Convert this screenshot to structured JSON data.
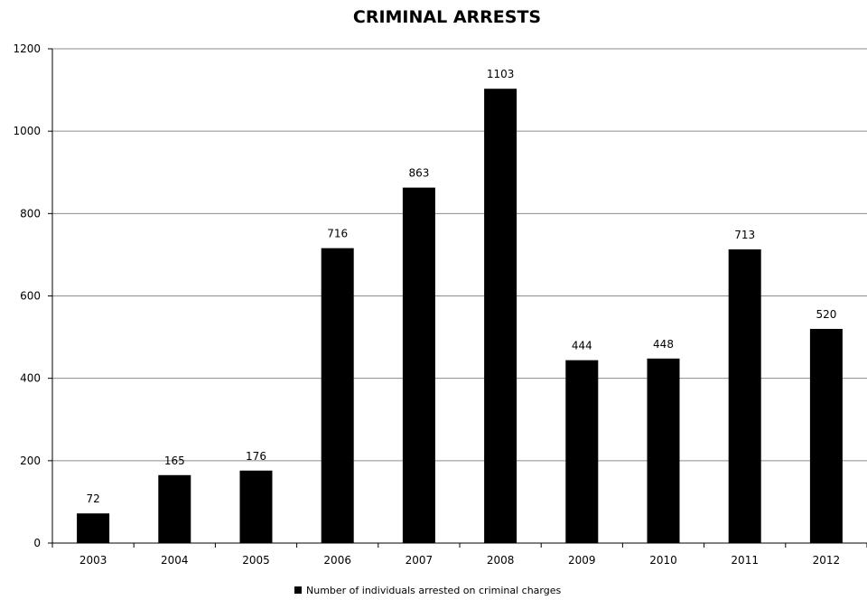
{
  "chart_data": {
    "type": "bar",
    "title": "CRIMINAL ARRESTS",
    "xlabel": "",
    "ylabel": "",
    "categories": [
      "2003",
      "2004",
      "2005",
      "2006",
      "2007",
      "2008",
      "2009",
      "2010",
      "2011",
      "2012"
    ],
    "series": [
      {
        "name": "Number of individuals arrested on criminal charges",
        "values": [
          72,
          165,
          176,
          716,
          863,
          1103,
          444,
          448,
          713,
          520
        ],
        "color": "#000000"
      }
    ],
    "ylim": [
      0,
      1200
    ],
    "yticks": [
      0,
      200,
      400,
      600,
      800,
      1000,
      1200
    ],
    "grid": true,
    "data_labels": true,
    "legend_position": "bottom"
  }
}
